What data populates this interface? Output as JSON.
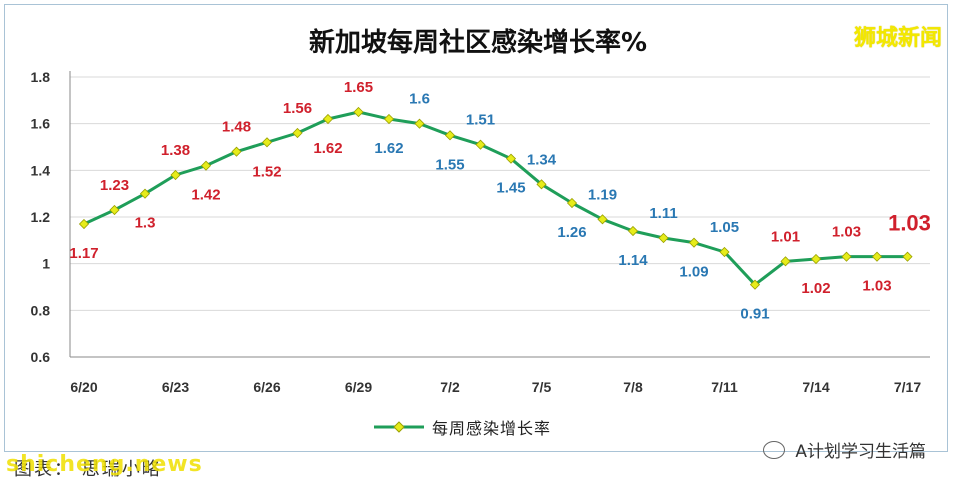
{
  "title": "新加坡每周社区感染增长率%",
  "brand": "狮城新闻",
  "legend_label": "每周感染增长率",
  "wechat_account": "A计划学习生活篇",
  "footer_caption": "图表： 思瑞小略",
  "watermark": "shicheng.news",
  "colors": {
    "line": "#1f9e59",
    "marker": "#e6ec1a",
    "label_red": "#d0202c",
    "label_blue": "#2a78b3",
    "grid": "#d9d9d9",
    "axis": "#8a8a8a"
  },
  "chart_data": {
    "type": "line",
    "title": "新加坡每周社区感染增长率%",
    "xlabel": "",
    "ylabel": "",
    "ylim": [
      0.6,
      1.8
    ],
    "yticks": [
      "0.6",
      "0.8",
      "1",
      "1.2",
      "1.4",
      "1.6",
      "1.8"
    ],
    "x_tick_labels": [
      "6/20",
      "6/23",
      "6/26",
      "6/29",
      "7/2",
      "7/5",
      "7/8",
      "7/11",
      "7/14",
      "7/17"
    ],
    "grid": true,
    "legend": "bottom",
    "series": [
      {
        "name": "每周感染增长率",
        "x": [
          "6/20",
          "6/21",
          "6/22",
          "6/23",
          "6/24",
          "6/25",
          "6/26",
          "6/27",
          "6/28",
          "6/29",
          "6/30",
          "7/1",
          "7/2",
          "7/3",
          "7/4",
          "7/5",
          "7/6",
          "7/7",
          "7/8",
          "7/9",
          "7/10",
          "7/11",
          "7/12",
          "7/13",
          "7/14",
          "7/15",
          "7/16",
          "7/17"
        ],
        "values": [
          1.17,
          1.23,
          1.3,
          1.38,
          1.42,
          1.48,
          1.52,
          1.56,
          1.62,
          1.65,
          1.62,
          1.6,
          1.55,
          1.51,
          1.45,
          1.34,
          1.26,
          1.19,
          1.14,
          1.11,
          1.09,
          1.05,
          0.91,
          1.01,
          1.02,
          1.03,
          1.03,
          1.03
        ],
        "data_labels": [
          "1.17",
          "1.23",
          "1.3",
          "1.38",
          "1.42",
          "1.48",
          "1.52",
          "1.56",
          "1.62",
          "1.65",
          "1.62",
          "1.6",
          "1.55",
          "1.51",
          "1.45",
          "1.34",
          "1.26",
          "1.19",
          "1.14",
          "1.11",
          "1.09",
          "1.05",
          "0.91",
          "1.01",
          "1.02",
          "1.03",
          "1.03",
          "1.03"
        ]
      }
    ]
  }
}
